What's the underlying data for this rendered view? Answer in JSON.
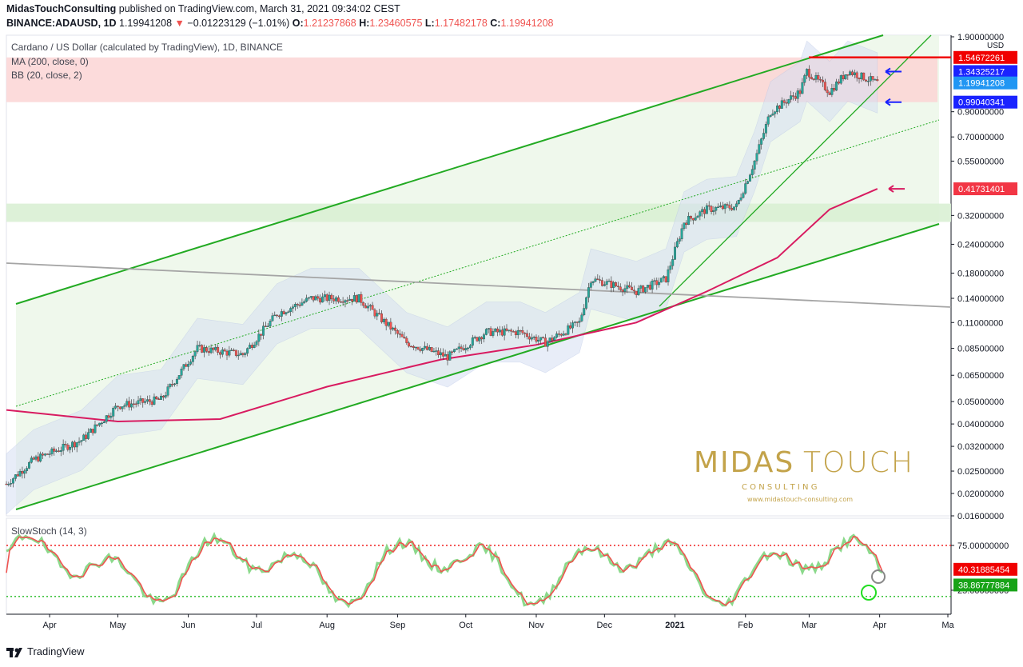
{
  "header": {
    "line1": {
      "publisher": "MidasTouchConsulting",
      "text": "published on TradingView.com, March 31, 2021 09:34:02 CEST"
    },
    "line2": {
      "symbol": "BINANCE:ADAUSD, 1D",
      "last": "1.19941208",
      "change": "−0.01223129 (−1.01%)",
      "o_label": "O:",
      "o": "1.21237868",
      "h_label": "H:",
      "h": "1.23460575",
      "l_label": "L:",
      "l": "1.17482178",
      "c_label": "C:",
      "c": "1.19941208"
    }
  },
  "legend": {
    "title": "Cardano / US Dollar (calculated by TradingView), 1D, BINANCE",
    "ma": "MA (200, close, 0)",
    "bb": "BB (20, close, 2)",
    "stoch": "SlowStoch (14, 3)"
  },
  "watermark": {
    "word1": "MIDAS",
    "word2": "TOUCH",
    "sub": "C O N S U L T I N G",
    "url": "www.midastouch-consulting.com"
  },
  "footer": {
    "brand": "TradingView"
  },
  "colors": {
    "up": "#26a69a",
    "down": "#ef5350",
    "ma": "#d81b60",
    "channel": "#22aa22",
    "bb_fill": "#d6dff3",
    "resistance": "#f00000",
    "gold": "#c3a34a"
  },
  "chart_data": [
    {
      "type": "line",
      "title": "Cardano / US Dollar (calculated by TradingView), 1D, BINANCE",
      "scale": "log",
      "currency": "USD",
      "y_ticks": [
        "1.90000000",
        "0.90000000",
        "0.70000000",
        "0.55000000",
        "0.32000000",
        "0.24000000",
        "0.18000000",
        "0.14000000",
        "0.11000000",
        "0.08500000",
        "0.06500000",
        "0.05000000",
        "0.04000000",
        "0.03200000",
        "0.02500000",
        "0.02000000",
        "0.01600000"
      ],
      "x_ticks": [
        "Apr",
        "May",
        "Jun",
        "Jul",
        "Aug",
        "Sep",
        "Oct",
        "Nov",
        "Dec",
        "2021",
        "Feb",
        "Mar",
        "Apr",
        "Ma"
      ],
      "price_labels": [
        "1.54672261",
        "1.34325217",
        "1.19941208",
        "0.99040341",
        "0.41731401"
      ],
      "series": [
        {
          "name": "BINANCE:ADAUSD",
          "values": [
            {
              "x": "2020-03-13",
              "y": 0.022
            },
            {
              "x": "2020-03-25",
              "y": 0.028
            },
            {
              "x": "2020-04-15",
              "y": 0.034
            },
            {
              "x": "2020-05-01",
              "y": 0.048
            },
            {
              "x": "2020-05-20",
              "y": 0.051
            },
            {
              "x": "2020-06-05",
              "y": 0.085
            },
            {
              "x": "2020-06-25",
              "y": 0.08
            },
            {
              "x": "2020-07-10",
              "y": 0.12
            },
            {
              "x": "2020-07-25",
              "y": 0.14
            },
            {
              "x": "2020-08-15",
              "y": 0.14
            },
            {
              "x": "2020-09-05",
              "y": 0.09
            },
            {
              "x": "2020-09-23",
              "y": 0.078
            },
            {
              "x": "2020-10-10",
              "y": 0.1
            },
            {
              "x": "2020-10-25",
              "y": 0.1
            },
            {
              "x": "2020-11-05",
              "y": 0.09
            },
            {
              "x": "2020-11-20",
              "y": 0.11
            },
            {
              "x": "2020-11-25",
              "y": 0.17
            },
            {
              "x": "2020-12-15",
              "y": 0.15
            },
            {
              "x": "2020-12-28",
              "y": 0.17
            },
            {
              "x": "2021-01-05",
              "y": 0.3
            },
            {
              "x": "2021-01-15",
              "y": 0.34
            },
            {
              "x": "2021-01-28",
              "y": 0.35
            },
            {
              "x": "2021-02-05",
              "y": 0.55
            },
            {
              "x": "2021-02-12",
              "y": 0.9
            },
            {
              "x": "2021-02-25",
              "y": 1.1
            },
            {
              "x": "2021-02-28",
              "y": 1.35
            },
            {
              "x": "2021-03-10",
              "y": 1.1
            },
            {
              "x": "2021-03-18",
              "y": 1.35
            },
            {
              "x": "2021-03-31",
              "y": 1.2
            }
          ]
        },
        {
          "name": "MA (200, close, 0)",
          "values": [
            {
              "x": "2020-03-13",
              "y": 0.046
            },
            {
              "x": "2020-05-01",
              "y": 0.041
            },
            {
              "x": "2020-06-15",
              "y": 0.042
            },
            {
              "x": "2020-08-01",
              "y": 0.058
            },
            {
              "x": "2020-09-20",
              "y": 0.076
            },
            {
              "x": "2020-11-01",
              "y": 0.088
            },
            {
              "x": "2020-12-15",
              "y": 0.11
            },
            {
              "x": "2021-01-15",
              "y": 0.15
            },
            {
              "x": "2021-02-15",
              "y": 0.21
            },
            {
              "x": "2021-03-10",
              "y": 0.34
            },
            {
              "x": "2021-03-31",
              "y": 0.41731401
            }
          ]
        }
      ]
    },
    {
      "type": "line",
      "title": "SlowStoch (14, 3)",
      "y_ticks": [
        "75.00000000",
        "25.00000000"
      ],
      "last_values": [
        "40.31885454",
        "38.86777884"
      ],
      "ylim": [
        0,
        100
      ]
    }
  ]
}
